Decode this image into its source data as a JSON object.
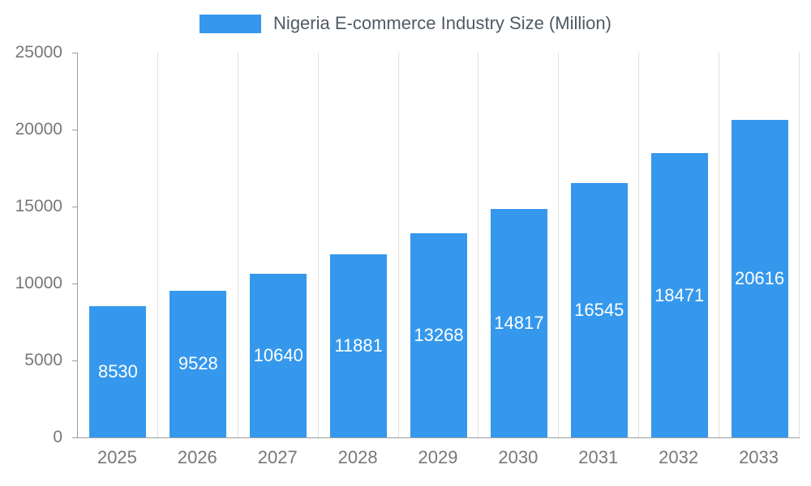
{
  "legend": {
    "label": "Nigeria E-commerce Industry Size (Million)"
  },
  "chart_data": {
    "type": "bar",
    "title": "Nigeria E-commerce Industry Size (Million)",
    "categories": [
      "2025",
      "2026",
      "2027",
      "2028",
      "2029",
      "2030",
      "2031",
      "2032",
      "2033"
    ],
    "values": [
      8530,
      9528,
      10640,
      11881,
      13268,
      14817,
      16545,
      18471,
      20616
    ],
    "xlabel": "",
    "ylabel": "",
    "ylim": [
      0,
      25000
    ],
    "yticks": [
      0,
      5000,
      10000,
      15000,
      20000,
      25000
    ],
    "bar_color": "#3598EC",
    "value_label_color": "#ffffff",
    "grid": "vertical-category-boundaries",
    "legend_position": "top-center"
  }
}
